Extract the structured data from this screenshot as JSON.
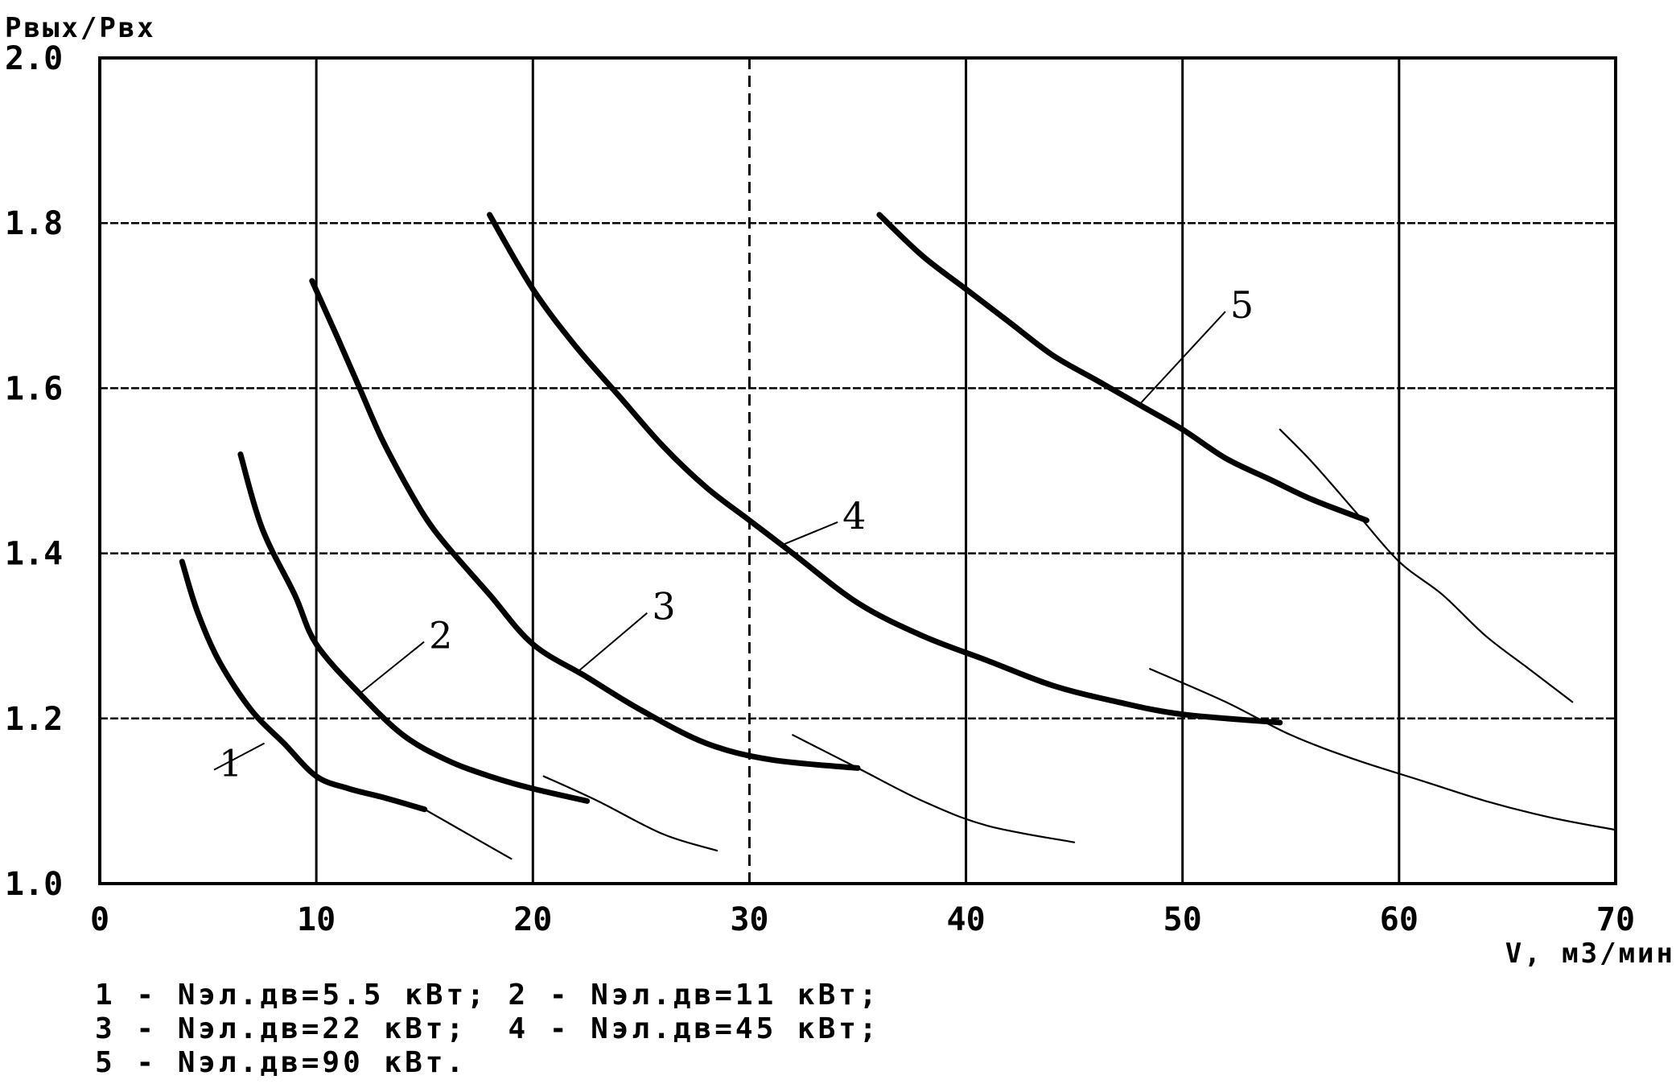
{
  "chart_data": {
    "type": "line",
    "ylabel": "Pвых/Pвх",
    "xlabel": "V, м3/мин",
    "xlim": [
      0,
      70
    ],
    "ylim": [
      1.0,
      2.0
    ],
    "x_ticks": [
      "0",
      "10",
      "20",
      "30",
      "40",
      "50",
      "60",
      "70"
    ],
    "y_ticks": [
      "1.0",
      "1.2",
      "1.4",
      "1.6",
      "1.8",
      "2.0"
    ],
    "grid": true,
    "dashed_vertical_at": 30,
    "series": [
      {
        "label": "1",
        "values": [
          [
            3.8,
            1.39
          ],
          [
            4.5,
            1.33
          ],
          [
            5.5,
            1.27
          ],
          [
            7,
            1.21
          ],
          [
            8.5,
            1.17
          ],
          [
            10,
            1.13
          ],
          [
            11.5,
            1.115
          ],
          [
            13,
            1.105
          ],
          [
            15,
            1.09
          ]
        ],
        "tail": [
          [
            15,
            1.09
          ],
          [
            17,
            1.06
          ],
          [
            19,
            1.03
          ]
        ]
      },
      {
        "label": "2",
        "values": [
          [
            6.5,
            1.52
          ],
          [
            7.5,
            1.43
          ],
          [
            9,
            1.35
          ],
          [
            10,
            1.29
          ],
          [
            12,
            1.23
          ],
          [
            14,
            1.18
          ],
          [
            16,
            1.15
          ],
          [
            18,
            1.13
          ],
          [
            20,
            1.115
          ],
          [
            22.5,
            1.1
          ]
        ],
        "tail": [
          [
            20.5,
            1.13
          ],
          [
            23,
            1.1
          ],
          [
            26,
            1.06
          ],
          [
            28.5,
            1.04
          ]
        ]
      },
      {
        "label": "3",
        "values": [
          [
            9.8,
            1.73
          ],
          [
            11,
            1.66
          ],
          [
            12,
            1.6
          ],
          [
            13,
            1.54
          ],
          [
            14,
            1.49
          ],
          [
            15,
            1.445
          ],
          [
            16,
            1.41
          ],
          [
            18,
            1.35
          ],
          [
            20,
            1.29
          ],
          [
            22.5,
            1.25
          ],
          [
            25,
            1.21
          ],
          [
            28,
            1.17
          ],
          [
            31,
            1.15
          ],
          [
            35,
            1.14
          ]
        ],
        "tail": [
          [
            32,
            1.18
          ],
          [
            35,
            1.14
          ],
          [
            38,
            1.1
          ],
          [
            41,
            1.07
          ],
          [
            45,
            1.05
          ]
        ]
      },
      {
        "label": "4",
        "values": [
          [
            18,
            1.81
          ],
          [
            20,
            1.72
          ],
          [
            22,
            1.65
          ],
          [
            24,
            1.59
          ],
          [
            26,
            1.53
          ],
          [
            28,
            1.48
          ],
          [
            30,
            1.44
          ],
          [
            32,
            1.4
          ],
          [
            35,
            1.34
          ],
          [
            38,
            1.3
          ],
          [
            41,
            1.27
          ],
          [
            44,
            1.24
          ],
          [
            47,
            1.22
          ],
          [
            50,
            1.205
          ],
          [
            54.5,
            1.195
          ]
        ],
        "tail": [
          [
            48.5,
            1.26
          ],
          [
            52,
            1.22
          ],
          [
            55,
            1.18
          ],
          [
            58,
            1.15
          ],
          [
            61,
            1.125
          ],
          [
            64,
            1.1
          ],
          [
            67,
            1.08
          ],
          [
            70,
            1.065
          ]
        ]
      },
      {
        "label": "5",
        "values": [
          [
            36,
            1.81
          ],
          [
            38,
            1.76
          ],
          [
            40,
            1.72
          ],
          [
            42,
            1.68
          ],
          [
            44,
            1.64
          ],
          [
            46,
            1.61
          ],
          [
            48,
            1.58
          ],
          [
            50,
            1.55
          ],
          [
            52,
            1.515
          ],
          [
            54,
            1.49
          ],
          [
            56,
            1.465
          ],
          [
            58.5,
            1.44
          ]
        ],
        "tail": [
          [
            54.5,
            1.55
          ],
          [
            56,
            1.51
          ],
          [
            58,
            1.45
          ],
          [
            60,
            1.39
          ],
          [
            62,
            1.35
          ],
          [
            64,
            1.3
          ],
          [
            66,
            1.26
          ],
          [
            68,
            1.22
          ]
        ]
      }
    ],
    "curve_labels": [
      {
        "text": "1",
        "at": [
          5.5,
          1.13
        ],
        "pointer_to": [
          7.6,
          1.17
        ]
      },
      {
        "text": "2",
        "at": [
          15.2,
          1.285
        ],
        "pointer_to": [
          12,
          1.23
        ]
      },
      {
        "text": "3",
        "at": [
          25.5,
          1.32
        ],
        "pointer_to": [
          22,
          1.255
        ]
      },
      {
        "text": "4",
        "at": [
          34.3,
          1.43
        ],
        "pointer_to": [
          31.5,
          1.41
        ]
      },
      {
        "text": "5",
        "at": [
          52.2,
          1.685
        ],
        "pointer_to": [
          48,
          1.58
        ]
      }
    ],
    "legend": [
      "1 - Nэл.дв=5.5 кВт; 2 - Nэл.дв=11 кВт;",
      "3 - Nэл.дв=22 кВт;  4 - Nэл.дв=45 кВт;",
      "5 - Nэл.дв=90 кВт."
    ]
  }
}
